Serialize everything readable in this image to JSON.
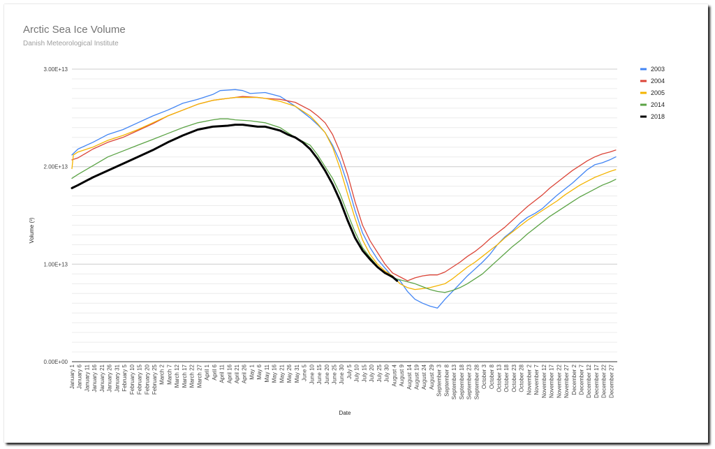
{
  "chart_data": {
    "type": "line",
    "title": "Arctic Sea Ice Volume",
    "subtitle": "Danish Meteorological Institute",
    "xlabel": "Date",
    "ylabel": "Volume (³)",
    "ylim": [
      0,
      30000000000000
    ],
    "y_ticks": [
      {
        "value": 0,
        "label": "0.00E+00"
      },
      {
        "value": 10000000000000,
        "label": "1.00E+13"
      },
      {
        "value": 20000000000000,
        "label": "2.00E+13"
      },
      {
        "value": 30000000000000,
        "label": "3.00E+13"
      }
    ],
    "x_ticks": [
      "January 1",
      "January 6",
      "January 11",
      "January 16",
      "January 21",
      "January 26",
      "January 31",
      "February 5",
      "February 10",
      "February 15",
      "February 20",
      "February 25",
      "March 2",
      "March 7",
      "March 12",
      "March 17",
      "March 22",
      "March 27",
      "April 1",
      "April 6",
      "April 11",
      "April 16",
      "April 21",
      "April 26",
      "May 1",
      "May 6",
      "May 11",
      "May 16",
      "May 21",
      "May 26",
      "May 31",
      "June 5",
      "June 10",
      "June 15",
      "June 20",
      "June 25",
      "June 30",
      "July 5",
      "July 10",
      "July 15",
      "July 20",
      "July 25",
      "July 30",
      "August 4",
      "August 9",
      "August 14",
      "August 19",
      "August 24",
      "August 29",
      "September 3",
      "September 8",
      "September 13",
      "September 18",
      "September 23",
      "September 28",
      "October 3",
      "October 8",
      "October 13",
      "October 18",
      "October 23",
      "October 28",
      "November 2",
      "November 7",
      "November 12",
      "November 17",
      "November 22",
      "November 27",
      "December 2",
      "December 7",
      "December 12",
      "December 17",
      "December 22",
      "December 27"
    ],
    "x_unit": "day of year",
    "grid": true,
    "legend_position": "right",
    "series": [
      {
        "name": "2003",
        "color": "#4285f4",
        "width": 1.3,
        "points": [
          [
            1,
            2.12
          ],
          [
            5,
            2.18
          ],
          [
            15,
            2.25
          ],
          [
            25,
            2.33
          ],
          [
            35,
            2.38
          ],
          [
            45,
            2.45
          ],
          [
            55,
            2.52
          ],
          [
            65,
            2.58
          ],
          [
            75,
            2.65
          ],
          [
            85,
            2.69
          ],
          [
            95,
            2.74
          ],
          [
            100,
            2.78
          ],
          [
            110,
            2.79
          ],
          [
            115,
            2.78
          ],
          [
            120,
            2.75
          ],
          [
            130,
            2.76
          ],
          [
            140,
            2.72
          ],
          [
            150,
            2.62
          ],
          [
            160,
            2.5
          ],
          [
            165,
            2.43
          ],
          [
            170,
            2.35
          ],
          [
            175,
            2.22
          ],
          [
            180,
            2.05
          ],
          [
            185,
            1.82
          ],
          [
            190,
            1.55
          ],
          [
            195,
            1.32
          ],
          [
            200,
            1.17
          ],
          [
            205,
            1.05
          ],
          [
            210,
            0.96
          ],
          [
            215,
            0.87
          ],
          [
            220,
            0.83
          ],
          [
            225,
            0.72
          ],
          [
            230,
            0.64
          ],
          [
            235,
            0.6
          ],
          [
            240,
            0.57
          ],
          [
            245,
            0.55
          ],
          [
            250,
            0.64
          ],
          [
            255,
            0.72
          ],
          [
            260,
            0.8
          ],
          [
            265,
            0.88
          ],
          [
            270,
            0.95
          ],
          [
            275,
            1.02
          ],
          [
            280,
            1.1
          ],
          [
            285,
            1.2
          ],
          [
            290,
            1.28
          ],
          [
            295,
            1.34
          ],
          [
            300,
            1.42
          ],
          [
            305,
            1.48
          ],
          [
            310,
            1.52
          ],
          [
            315,
            1.57
          ],
          [
            320,
            1.64
          ],
          [
            325,
            1.71
          ],
          [
            330,
            1.77
          ],
          [
            335,
            1.83
          ],
          [
            340,
            1.9
          ],
          [
            345,
            1.97
          ],
          [
            350,
            2.02
          ],
          [
            355,
            2.04
          ],
          [
            360,
            2.07
          ],
          [
            364,
            2.1
          ]
        ]
      },
      {
        "name": "2004",
        "color": "#db4437",
        "width": 1.3,
        "points": [
          [
            1,
            2.07
          ],
          [
            5,
            2.09
          ],
          [
            15,
            2.18
          ],
          [
            25,
            2.25
          ],
          [
            35,
            2.3
          ],
          [
            45,
            2.37
          ],
          [
            55,
            2.44
          ],
          [
            65,
            2.52
          ],
          [
            75,
            2.58
          ],
          [
            85,
            2.64
          ],
          [
            95,
            2.68
          ],
          [
            105,
            2.7
          ],
          [
            110,
            2.71
          ],
          [
            115,
            2.72
          ],
          [
            125,
            2.71
          ],
          [
            130,
            2.7
          ],
          [
            140,
            2.69
          ],
          [
            150,
            2.66
          ],
          [
            160,
            2.58
          ],
          [
            165,
            2.52
          ],
          [
            170,
            2.45
          ],
          [
            175,
            2.33
          ],
          [
            180,
            2.15
          ],
          [
            185,
            1.92
          ],
          [
            190,
            1.64
          ],
          [
            195,
            1.4
          ],
          [
            200,
            1.24
          ],
          [
            205,
            1.12
          ],
          [
            210,
            1.0
          ],
          [
            215,
            0.91
          ],
          [
            220,
            0.87
          ],
          [
            225,
            0.83
          ],
          [
            230,
            0.86
          ],
          [
            235,
            0.88
          ],
          [
            240,
            0.89
          ],
          [
            245,
            0.89
          ],
          [
            250,
            0.92
          ],
          [
            255,
            0.97
          ],
          [
            260,
            1.02
          ],
          [
            265,
            1.08
          ],
          [
            270,
            1.13
          ],
          [
            275,
            1.19
          ],
          [
            280,
            1.26
          ],
          [
            285,
            1.32
          ],
          [
            290,
            1.38
          ],
          [
            295,
            1.45
          ],
          [
            300,
            1.52
          ],
          [
            305,
            1.59
          ],
          [
            310,
            1.65
          ],
          [
            315,
            1.71
          ],
          [
            320,
            1.78
          ],
          [
            325,
            1.84
          ],
          [
            330,
            1.9
          ],
          [
            335,
            1.96
          ],
          [
            340,
            2.01
          ],
          [
            345,
            2.06
          ],
          [
            350,
            2.1
          ],
          [
            355,
            2.13
          ],
          [
            360,
            2.15
          ],
          [
            364,
            2.17
          ]
        ]
      },
      {
        "name": "2005",
        "color": "#f4b400",
        "width": 1.3,
        "points": [
          [
            1,
            1.98
          ],
          [
            2,
            2.12
          ],
          [
            5,
            2.15
          ],
          [
            15,
            2.2
          ],
          [
            25,
            2.27
          ],
          [
            35,
            2.32
          ],
          [
            45,
            2.38
          ],
          [
            55,
            2.45
          ],
          [
            65,
            2.52
          ],
          [
            75,
            2.58
          ],
          [
            85,
            2.64
          ],
          [
            95,
            2.68
          ],
          [
            105,
            2.7
          ],
          [
            110,
            2.71
          ],
          [
            115,
            2.71
          ],
          [
            125,
            2.71
          ],
          [
            130,
            2.7
          ],
          [
            140,
            2.67
          ],
          [
            150,
            2.62
          ],
          [
            160,
            2.52
          ],
          [
            165,
            2.44
          ],
          [
            170,
            2.35
          ],
          [
            175,
            2.2
          ],
          [
            180,
            1.98
          ],
          [
            185,
            1.72
          ],
          [
            190,
            1.47
          ],
          [
            195,
            1.25
          ],
          [
            200,
            1.1
          ],
          [
            205,
            1.0
          ],
          [
            210,
            0.93
          ],
          [
            215,
            0.88
          ],
          [
            220,
            0.8
          ],
          [
            225,
            0.76
          ],
          [
            230,
            0.74
          ],
          [
            235,
            0.75
          ],
          [
            240,
            0.76
          ],
          [
            245,
            0.78
          ],
          [
            250,
            0.8
          ],
          [
            255,
            0.85
          ],
          [
            260,
            0.91
          ],
          [
            265,
            0.97
          ],
          [
            270,
            1.02
          ],
          [
            275,
            1.08
          ],
          [
            280,
            1.14
          ],
          [
            285,
            1.2
          ],
          [
            290,
            1.27
          ],
          [
            295,
            1.33
          ],
          [
            300,
            1.39
          ],
          [
            305,
            1.45
          ],
          [
            310,
            1.5
          ],
          [
            315,
            1.55
          ],
          [
            320,
            1.6
          ],
          [
            325,
            1.65
          ],
          [
            330,
            1.71
          ],
          [
            335,
            1.76
          ],
          [
            340,
            1.81
          ],
          [
            345,
            1.85
          ],
          [
            350,
            1.89
          ],
          [
            355,
            1.92
          ],
          [
            360,
            1.95
          ],
          [
            364,
            1.97
          ]
        ]
      },
      {
        "name": "2014",
        "color": "#5ba345",
        "width": 1.3,
        "points": [
          [
            1,
            1.88
          ],
          [
            5,
            1.92
          ],
          [
            15,
            2.01
          ],
          [
            25,
            2.1
          ],
          [
            35,
            2.16
          ],
          [
            45,
            2.22
          ],
          [
            55,
            2.28
          ],
          [
            65,
            2.34
          ],
          [
            75,
            2.4
          ],
          [
            85,
            2.45
          ],
          [
            95,
            2.48
          ],
          [
            100,
            2.49
          ],
          [
            105,
            2.49
          ],
          [
            110,
            2.48
          ],
          [
            120,
            2.47
          ],
          [
            130,
            2.45
          ],
          [
            140,
            2.4
          ],
          [
            150,
            2.3
          ],
          [
            160,
            2.22
          ],
          [
            165,
            2.12
          ],
          [
            170,
            2.0
          ],
          [
            175,
            1.88
          ],
          [
            180,
            1.72
          ],
          [
            185,
            1.52
          ],
          [
            190,
            1.33
          ],
          [
            195,
            1.17
          ],
          [
            200,
            1.07
          ],
          [
            205,
            0.98
          ],
          [
            210,
            0.91
          ],
          [
            215,
            0.86
          ],
          [
            220,
            0.84
          ],
          [
            225,
            0.82
          ],
          [
            230,
            0.8
          ],
          [
            235,
            0.77
          ],
          [
            240,
            0.74
          ],
          [
            245,
            0.72
          ],
          [
            250,
            0.71
          ],
          [
            255,
            0.73
          ],
          [
            260,
            0.76
          ],
          [
            265,
            0.8
          ],
          [
            270,
            0.85
          ],
          [
            275,
            0.9
          ],
          [
            280,
            0.97
          ],
          [
            285,
            1.04
          ],
          [
            290,
            1.11
          ],
          [
            295,
            1.18
          ],
          [
            300,
            1.24
          ],
          [
            305,
            1.31
          ],
          [
            310,
            1.37
          ],
          [
            315,
            1.43
          ],
          [
            320,
            1.49
          ],
          [
            325,
            1.54
          ],
          [
            330,
            1.59
          ],
          [
            335,
            1.64
          ],
          [
            340,
            1.69
          ],
          [
            345,
            1.73
          ],
          [
            350,
            1.77
          ],
          [
            355,
            1.81
          ],
          [
            360,
            1.84
          ],
          [
            364,
            1.87
          ]
        ]
      },
      {
        "name": "2018",
        "color": "#000000",
        "width": 3,
        "points": [
          [
            1,
            1.78
          ],
          [
            5,
            1.81
          ],
          [
            15,
            1.89
          ],
          [
            25,
            1.96
          ],
          [
            35,
            2.03
          ],
          [
            45,
            2.1
          ],
          [
            55,
            2.17
          ],
          [
            65,
            2.25
          ],
          [
            75,
            2.32
          ],
          [
            85,
            2.38
          ],
          [
            95,
            2.41
          ],
          [
            105,
            2.42
          ],
          [
            110,
            2.43
          ],
          [
            115,
            2.43
          ],
          [
            120,
            2.42
          ],
          [
            125,
            2.41
          ],
          [
            130,
            2.41
          ],
          [
            135,
            2.39
          ],
          [
            140,
            2.37
          ],
          [
            145,
            2.33
          ],
          [
            150,
            2.3
          ],
          [
            155,
            2.25
          ],
          [
            160,
            2.18
          ],
          [
            165,
            2.08
          ],
          [
            170,
            1.96
          ],
          [
            175,
            1.82
          ],
          [
            180,
            1.65
          ],
          [
            185,
            1.45
          ],
          [
            190,
            1.27
          ],
          [
            195,
            1.14
          ],
          [
            200,
            1.05
          ],
          [
            205,
            0.97
          ],
          [
            210,
            0.91
          ],
          [
            215,
            0.87
          ],
          [
            218,
            0.83
          ]
        ]
      }
    ]
  }
}
